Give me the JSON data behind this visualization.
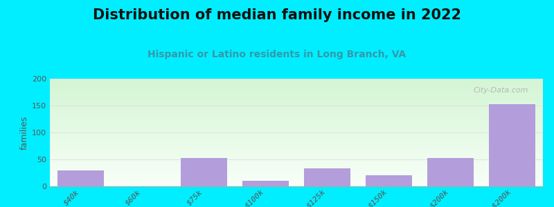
{
  "title": "Distribution of median family income in 2022",
  "subtitle": "Hispanic or Latino residents in Long Branch, VA",
  "categories": [
    "$40k",
    "$60k",
    "$75k",
    "$100k",
    "$125k",
    "$150k",
    "$200k",
    "> $200k"
  ],
  "values": [
    30,
    0,
    53,
    10,
    33,
    20,
    53,
    152
  ],
  "bar_color": "#b39ddb",
  "bg_color": "#00eeff",
  "plot_bg_top": "#d4f5d4",
  "plot_bg_bottom": "#f8fff8",
  "ylabel": "families",
  "ylim": [
    0,
    200
  ],
  "yticks": [
    0,
    50,
    100,
    150,
    200
  ],
  "grid_color": "#dddddd",
  "watermark": "City-Data.com",
  "title_fontsize": 15,
  "subtitle_fontsize": 10
}
